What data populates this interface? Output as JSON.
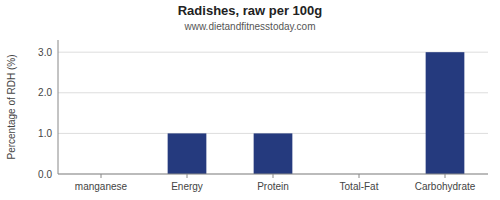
{
  "chart_data": {
    "type": "bar",
    "title": "Radishes, raw per 100g",
    "subtitle": "www.dietandfitnesstoday.com",
    "categories": [
      "manganese",
      "Energy",
      "Protein",
      "Total-Fat",
      "Carbohydrate"
    ],
    "values": [
      0.0,
      1.0,
      1.0,
      0.0,
      3.0
    ],
    "color": "#253a7e",
    "y_label": "Percentage of RDH (%)",
    "ylim": [
      0,
      3.3
    ],
    "yticks": [
      {
        "value": 0.0,
        "label": "0.0"
      },
      {
        "value": 1.0,
        "label": "1.0"
      },
      {
        "value": 2.0,
        "label": "2.0"
      },
      {
        "value": 3.0,
        "label": "3.0"
      }
    ],
    "grid": true
  }
}
